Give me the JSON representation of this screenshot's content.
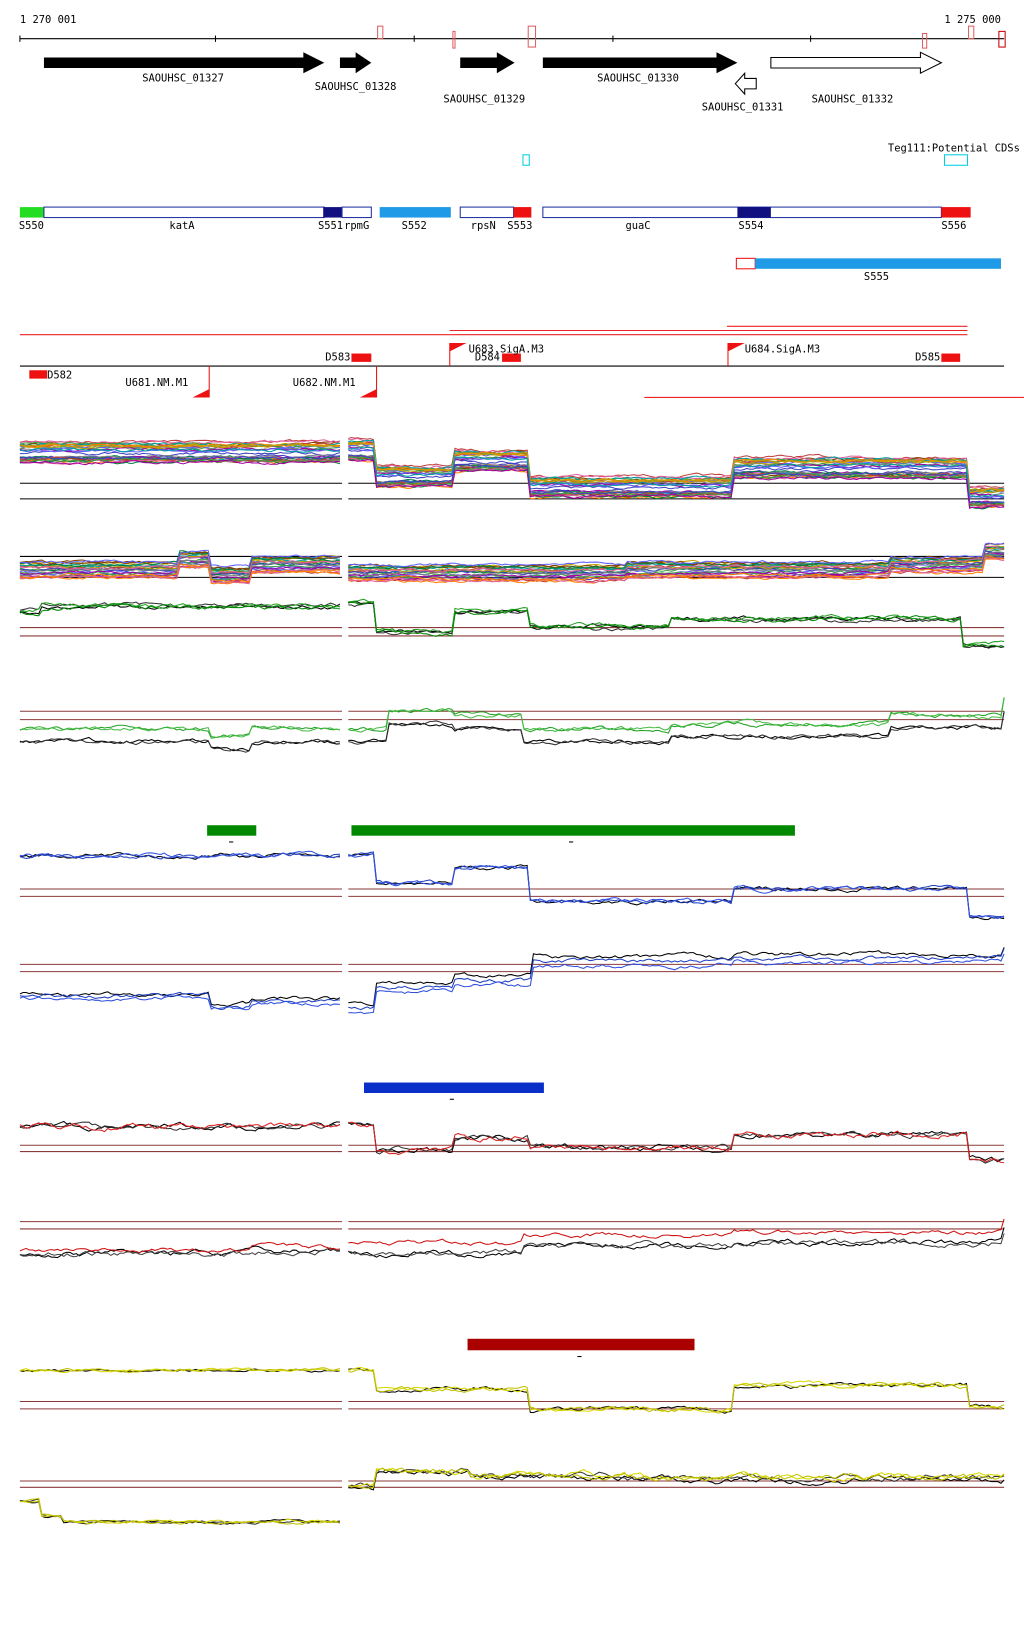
{
  "header": {
    "start": "1 270 001",
    "end": "1 275 000"
  },
  "genes": [
    {
      "label": "SAOUHSC_01327"
    },
    {
      "label": "SAOUHSC_01328"
    },
    {
      "label": "SAOUHSC_01329"
    },
    {
      "label": "SAOUHSC_01330"
    },
    {
      "label": "SAOUHSC_01331"
    },
    {
      "label": "SAOUHSC_01332"
    }
  ],
  "cds_track_label": "Teg111:Potential CDSs",
  "segments": [
    "S550",
    "katA",
    "S551",
    "rpmG",
    "S552",
    "rpsN",
    "S553",
    "guaC",
    "S554",
    "S556",
    "S555"
  ],
  "features": [
    "D582",
    "D583",
    "D584",
    "D585",
    "U681.NM.M1",
    "U682.NM.M1",
    "U683.SigA.M3",
    "U684.SigA.M3"
  ]
}
